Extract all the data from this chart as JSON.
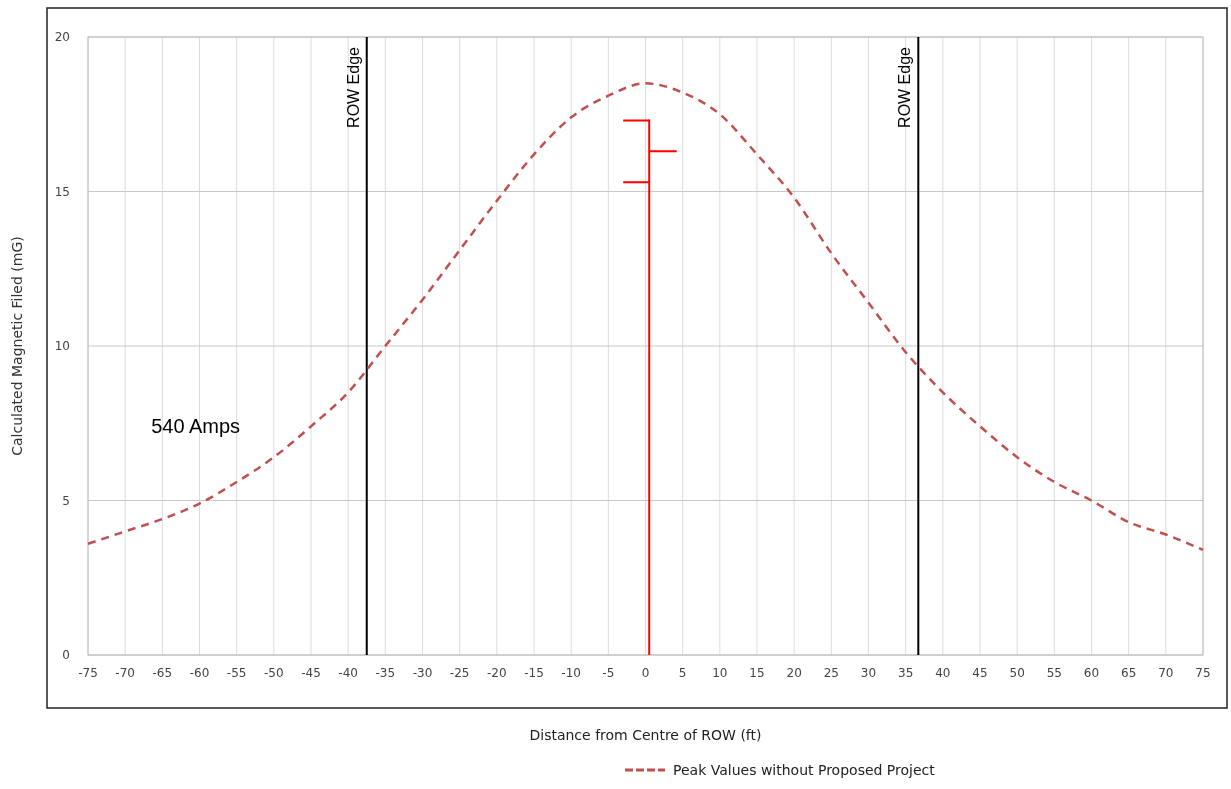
{
  "chart_data": {
    "type": "line",
    "xlabel": "Distance from Centre of ROW (ft)",
    "ylabel": "Calculated Magnetic Filed (mG)",
    "x": [
      -75,
      -70,
      -65,
      -60,
      -55,
      -50,
      -45,
      -40,
      -35,
      -30,
      -25,
      -20,
      -15,
      -10,
      -5,
      0,
      5,
      10,
      15,
      20,
      25,
      30,
      35,
      40,
      45,
      50,
      55,
      60,
      65,
      70,
      75
    ],
    "series": [
      {
        "name": "Peak Values without Proposed Project",
        "color": "#c0504d",
        "values": [
          3.6,
          4.0,
          4.4,
          4.9,
          5.6,
          6.4,
          7.4,
          8.5,
          10.0,
          11.5,
          13.1,
          14.7,
          16.2,
          17.4,
          18.1,
          18.5,
          18.2,
          17.5,
          16.2,
          14.8,
          13.0,
          11.4,
          9.8,
          8.5,
          7.4,
          6.4,
          5.6,
          5.0,
          4.3,
          3.9,
          3.4
        ]
      }
    ],
    "xlim": [
      -75,
      75
    ],
    "xticks": [
      -75,
      -70,
      -65,
      -60,
      -55,
      -50,
      -45,
      -40,
      -35,
      -30,
      -25,
      -20,
      -15,
      -10,
      -5,
      0,
      5,
      10,
      15,
      20,
      25,
      30,
      35,
      40,
      45,
      50,
      55,
      60,
      65,
      70,
      75
    ],
    "ylim": [
      0,
      20
    ],
    "yticks": [
      0,
      5,
      10,
      15,
      20
    ],
    "grid": true,
    "legend": "bottom",
    "line_style": "dashed",
    "marker": "none",
    "ref_lines": [
      {
        "axis": "x",
        "value": -37.5,
        "label": "ROW Edge",
        "color": "#000000"
      },
      {
        "axis": "x",
        "value": 36.7,
        "label": "ROW Edge",
        "color": "#000000"
      },
      {
        "axis": "x",
        "value": 0.5,
        "color": "#ff0000"
      }
    ],
    "annotations": [
      "540 Amps"
    ]
  }
}
